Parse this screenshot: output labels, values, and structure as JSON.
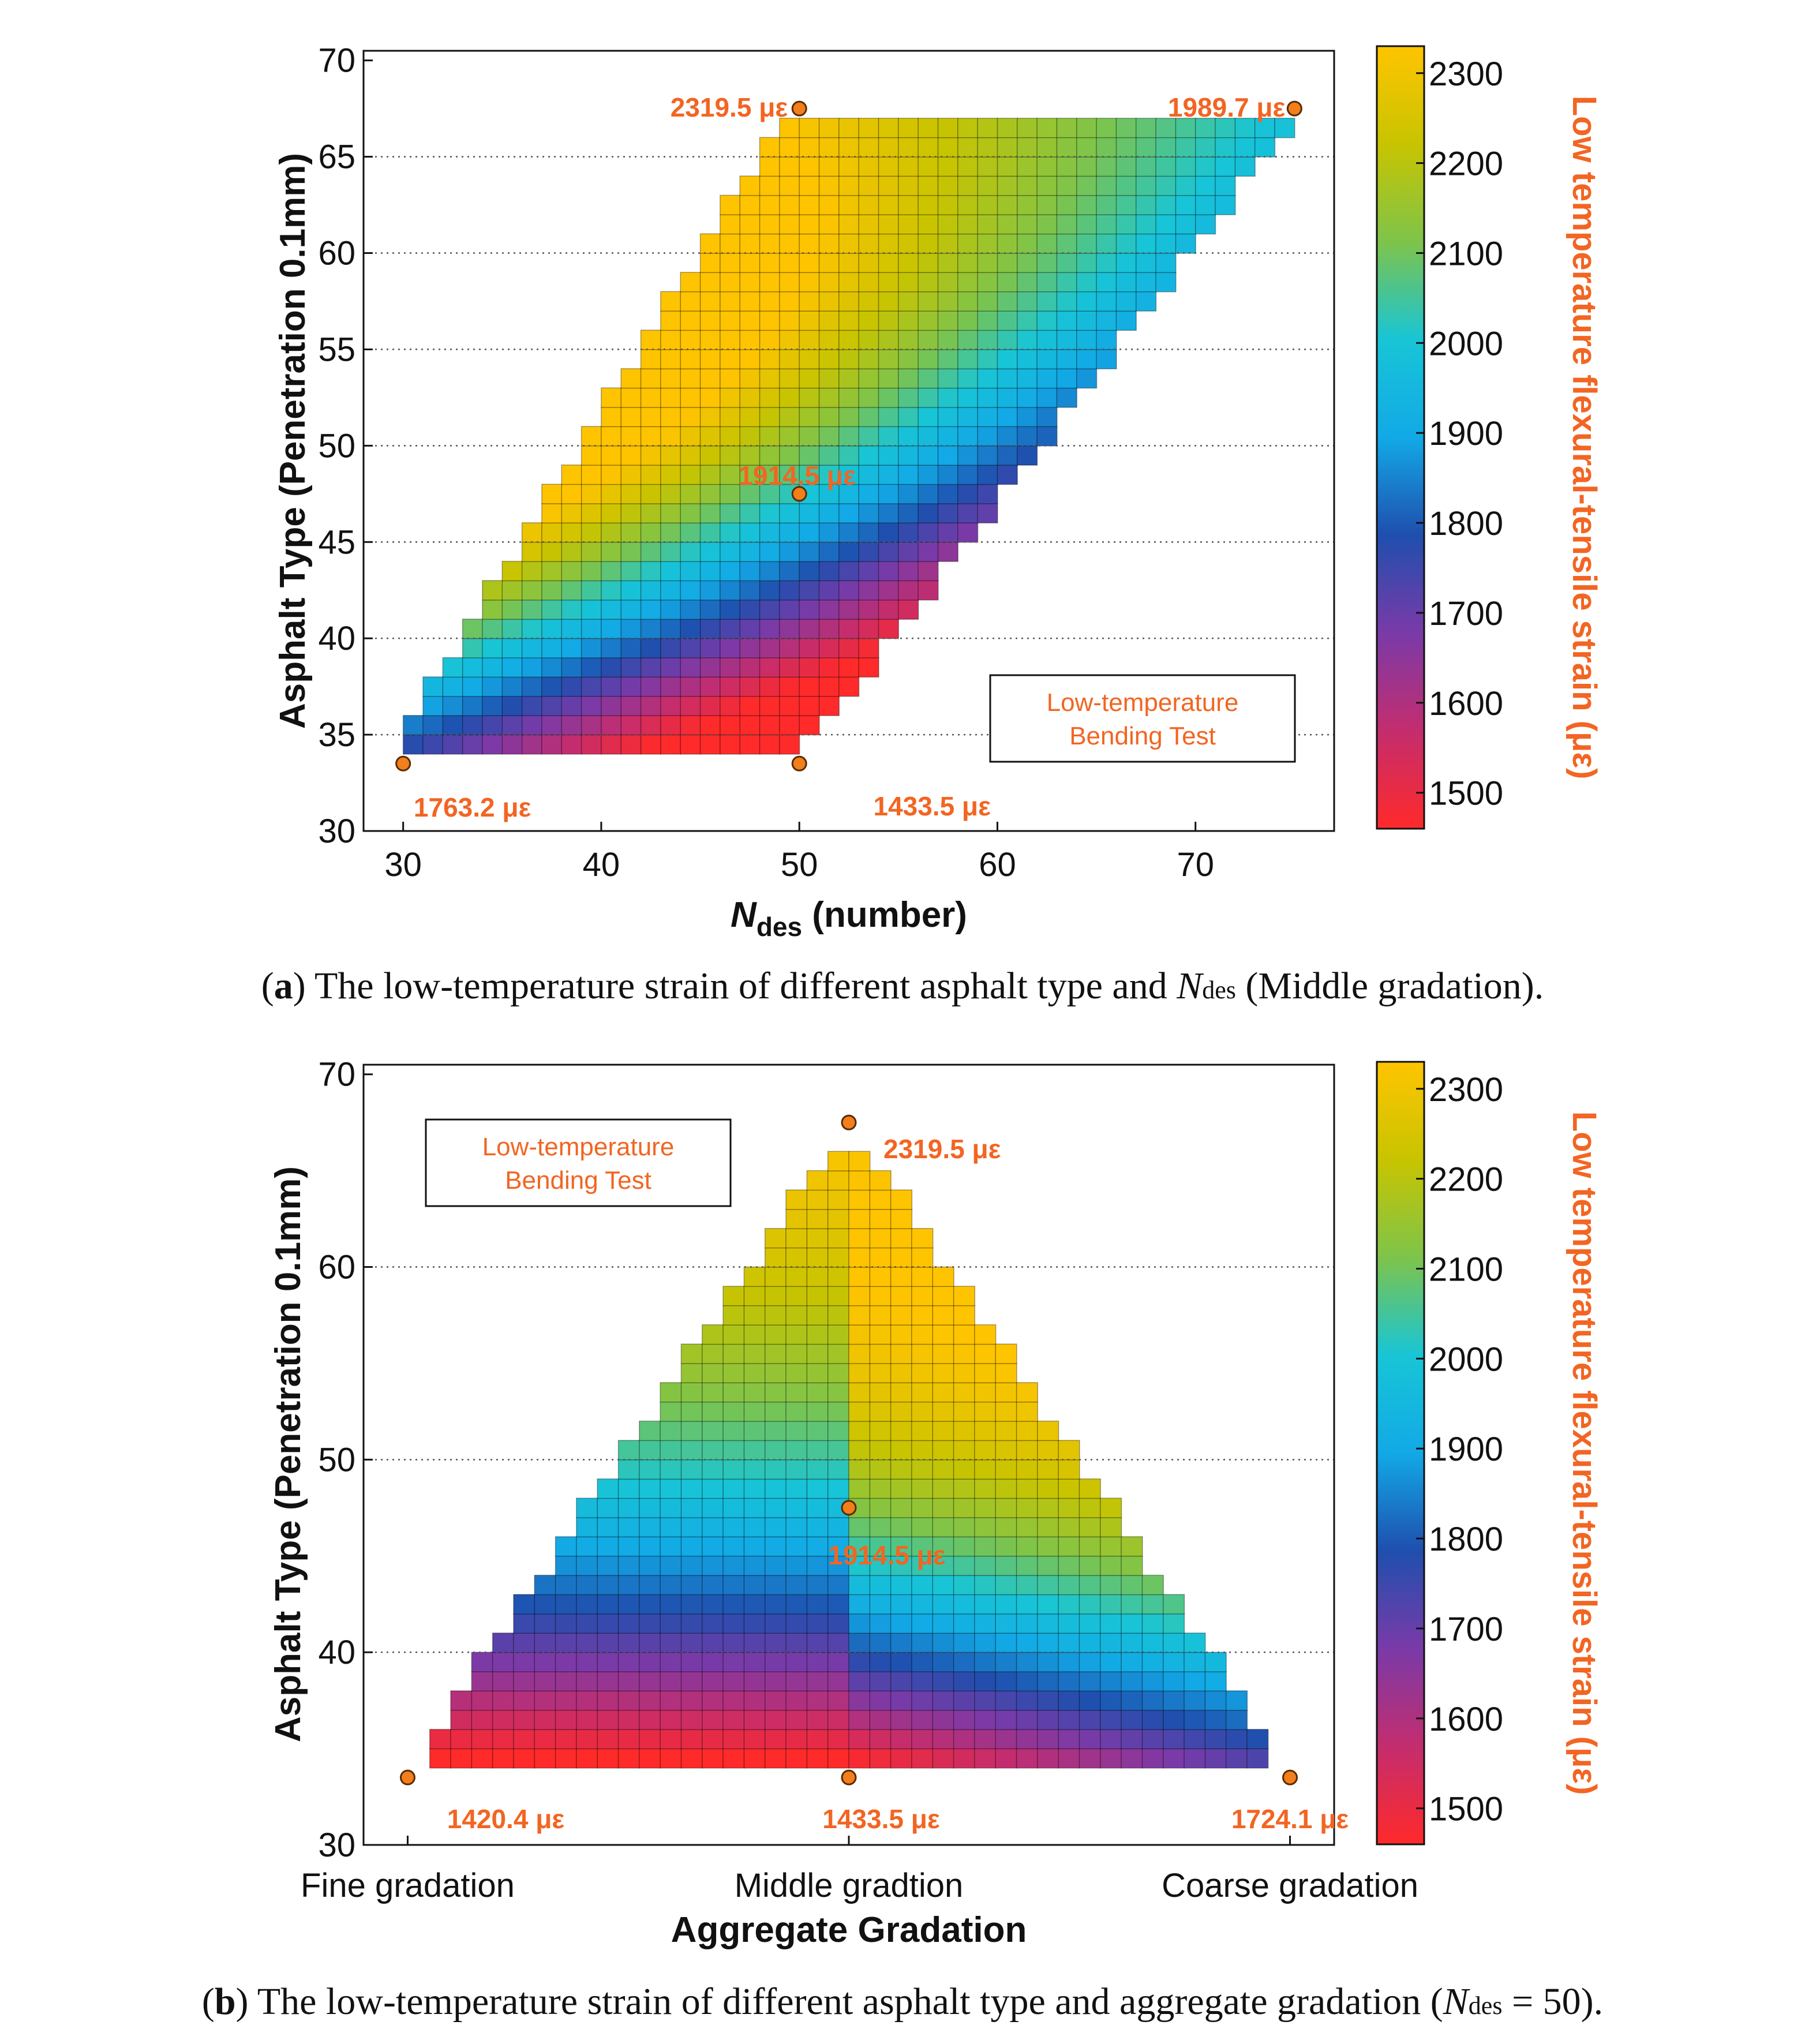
{
  "colors": {
    "annotation": "#f26522",
    "marker_fill": "#f07f1c",
    "marker_stroke": "#5a2a00",
    "colormap": [
      "#ff2a2a",
      "#c42d6e",
      "#7a3aa8",
      "#1f4fae",
      "#12a9e6",
      "#18c5d6",
      "#7ec44a",
      "#c8c400",
      "#ffc400"
    ]
  },
  "chart_data": [
    {
      "id": "a",
      "type": "heatmap",
      "caption": {
        "prefix": "(",
        "bold": "a",
        "text": ") The low-temperature strain of different asphalt type and ",
        "n_symbol": "N",
        "n_sub": "des",
        "suffix": " (Middle gradation)."
      },
      "xlabel": {
        "italic": "N",
        "sub": "des",
        "rest": " (number)"
      },
      "ylabel": "Asphalt Type (Penetration 0.1mm)",
      "xlim": [
        28,
        77
      ],
      "ylim": [
        30,
        70.5
      ],
      "xticks": [
        30,
        40,
        50,
        60,
        70
      ],
      "yticks": [
        30,
        35,
        40,
        45,
        50,
        55,
        60,
        65,
        70
      ],
      "gridlines_y": [
        35,
        40,
        45,
        50,
        55,
        60,
        65
      ],
      "region": "parallelogram: x from 30 to 50 at penetration 34, to 50 to 75 at penetration 67",
      "cell_size": {
        "x": 1,
        "y": 1
      },
      "corner_values": {
        "x30_y34": 1763.2,
        "x50_y34": 1433.5,
        "x50_y67": 2319.5,
        "x75_y67": 1989.7,
        "x50_y47.5": 1914.5
      },
      "points": [
        {
          "x": 30,
          "y": 33.5,
          "label": "1763.2 με"
        },
        {
          "x": 50,
          "y": 33.5,
          "label": "1433.5 με"
        },
        {
          "x": 50,
          "y": 67.5,
          "label": "2319.5 με"
        },
        {
          "x": 75,
          "y": 67.5,
          "label": "1989.7 με"
        },
        {
          "x": 50,
          "y": 47.5,
          "label": "1914.5 με"
        }
      ],
      "legend_box": [
        "Low-temperature",
        "Bending Test"
      ],
      "colorbar": {
        "ticks": [
          "2300",
          "2200",
          "2100",
          "2000",
          "1900",
          "1800",
          "1700",
          "1600",
          "1500"
        ],
        "range": [
          1460,
          2330
        ],
        "label": "Low temperature flexural-tensile strain (με)"
      }
    },
    {
      "id": "b",
      "type": "heatmap",
      "caption": {
        "prefix": "(",
        "bold": "b",
        "text": ") The low-temperature strain of different asphalt type and aggregate gradation (",
        "n_symbol": "N",
        "n_sub": "des",
        "suffix": " = 50)."
      },
      "xlabel": "Aggregate Gradation",
      "ylabel": "Asphalt Type (Penetration 0.1mm)",
      "xlim": [
        -0.1,
        2.1
      ],
      "ylim": [
        30,
        70.5
      ],
      "xcategories": [
        "Fine gradation",
        "Middle gradtion",
        "Coarse gradation"
      ],
      "yticks": [
        30,
        40,
        50,
        60,
        70
      ],
      "gridlines_y": [
        40,
        50,
        60
      ],
      "region": "triangle: base from fine to coarse at penetration 34, apex at middle gradation penetration 66",
      "corner_values": {
        "fine_y34": 1420.4,
        "middle_y34": 1433.5,
        "coarse_y34": 1724.1,
        "middle_y66": 2319.5,
        "middle_y47.5": 1914.5
      },
      "points": [
        {
          "x": 0,
          "y": 33.5,
          "label": "1420.4 με"
        },
        {
          "x": 1,
          "y": 33.5,
          "label": "1433.5 με"
        },
        {
          "x": 2,
          "y": 33.5,
          "label": "1724.1 με"
        },
        {
          "x": 1,
          "y": 67.5,
          "label": "2319.5 με"
        },
        {
          "x": 1,
          "y": 47.5,
          "label": "1914.5 με"
        }
      ],
      "legend_box": [
        "Low-temperature",
        "Bending Test"
      ],
      "colorbar": {
        "ticks": [
          "2300",
          "2200",
          "2100",
          "2000",
          "1900",
          "1800",
          "1700",
          "1600",
          "1500"
        ],
        "range": [
          1460,
          2330
        ],
        "label": "Low temperature flexural-tensile strain (με)"
      }
    }
  ]
}
